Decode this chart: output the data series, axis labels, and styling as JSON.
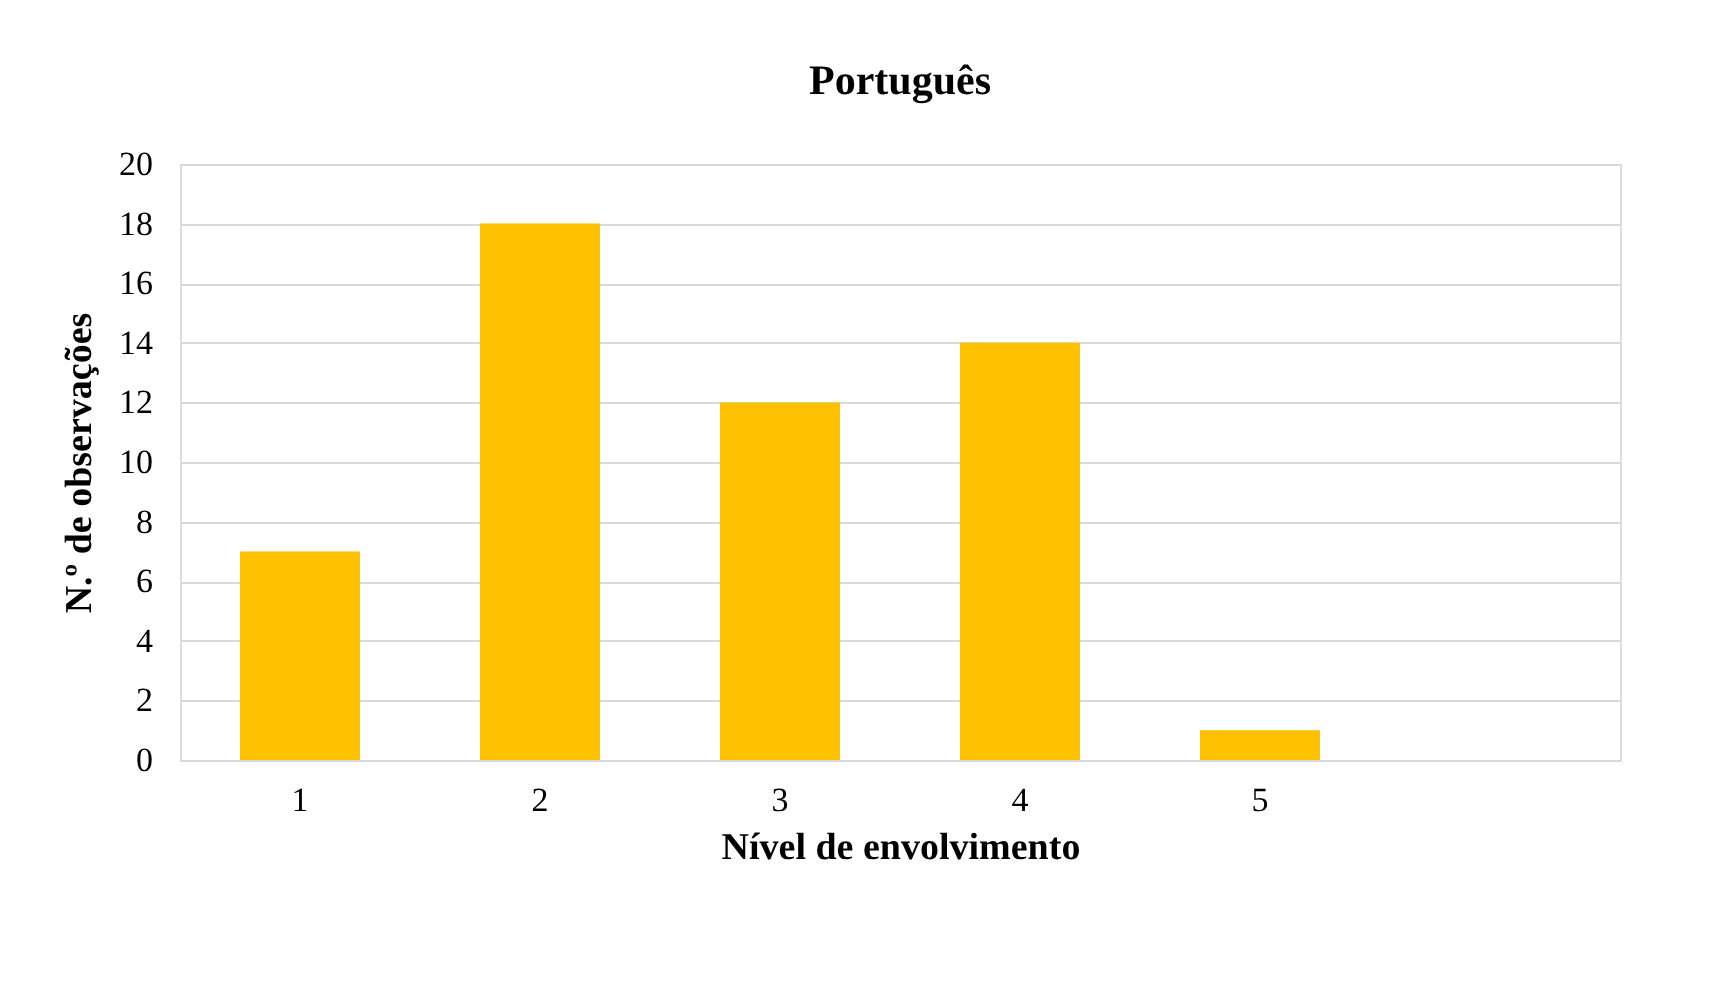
{
  "chart_data": {
    "type": "bar",
    "title": "Português",
    "xlabel": "Nível de envolvimento",
    "ylabel": "N.º de observações",
    "categories": [
      "1",
      "2",
      "3",
      "4",
      "5",
      null
    ],
    "values": [
      7,
      18,
      12,
      14,
      1,
      null
    ],
    "color": "#ffc000",
    "ylim": [
      0,
      20
    ],
    "yticks": [
      0,
      2,
      4,
      6,
      8,
      10,
      12,
      14,
      16,
      18,
      20
    ],
    "grid": "y"
  }
}
